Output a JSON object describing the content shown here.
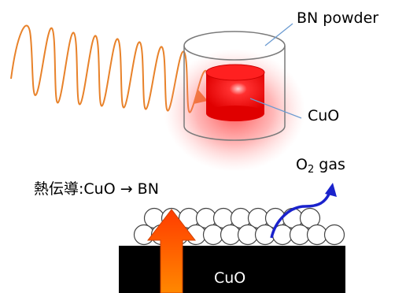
{
  "labels": {
    "bn_powder": "BN powder",
    "cuo_sample": "CuO",
    "o2_prefix": "O",
    "o2_subscript": "2",
    "o2_suffix": " gas",
    "heat_conduction": "熱伝導:CuO → BN",
    "cuo_block": "CuO"
  },
  "colors": {
    "microwave": "#e8822a",
    "cuo_red": "#ff0000",
    "glow_red": "#ff5050",
    "heat_arrow_top": "#ff3c00",
    "heat_arrow_bottom": "#ff8800",
    "gas_arrow": "#1a22cc",
    "block": "#000000",
    "callout_line": "#6b9bd1"
  }
}
